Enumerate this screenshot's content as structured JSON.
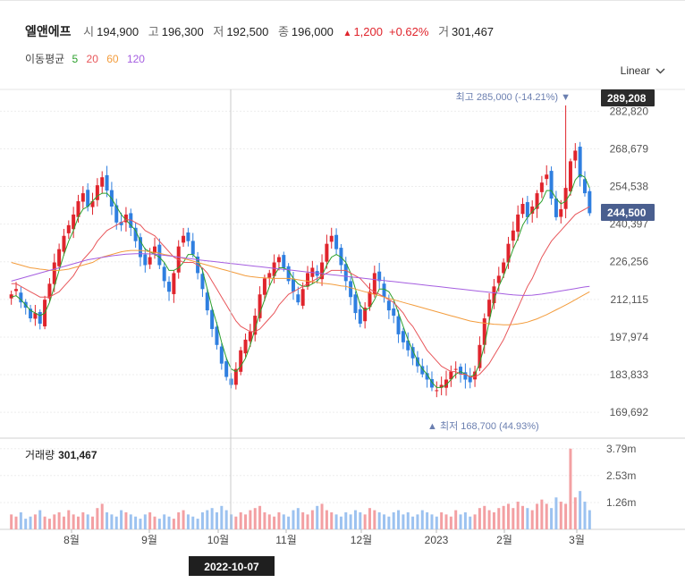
{
  "stock": {
    "name": "엘앤에프",
    "open_label": "시",
    "open": "194,900",
    "high_label": "고",
    "high": "196,300",
    "low_label": "저",
    "low": "192,500",
    "close_label": "종",
    "close": "196,000",
    "change": "1,200",
    "change_pct": "+0.62%",
    "volume_label": "거",
    "volume": "301,467"
  },
  "moving_average": {
    "label": "이동평균",
    "periods": [
      {
        "value": "5",
        "color": "#2ca02c"
      },
      {
        "value": "20",
        "color": "#e8565a"
      },
      {
        "value": "60",
        "color": "#f39c3c"
      },
      {
        "value": "120",
        "color": "#a55ee0"
      }
    ]
  },
  "scale_mode": "Linear",
  "chart_data": {
    "type": "candlestick",
    "title": "엘앤에프",
    "price_axis": {
      "ticks": [
        "282,820",
        "268,679",
        "254,538",
        "240,397",
        "226,256",
        "212,115",
        "197,974",
        "183,833",
        "169,692"
      ],
      "tick_values": [
        282820,
        268679,
        254538,
        240397,
        226256,
        212115,
        197974,
        183833,
        169692
      ],
      "range": [
        160000,
        291000
      ],
      "top_marker": "289,208",
      "current_marker": "244,500"
    },
    "x_axis": {
      "labels": [
        "8월",
        "9월",
        "10월",
        "11월",
        "12월",
        "2023",
        "2월",
        "3월"
      ]
    },
    "annotations": {
      "high": "최고 285,000 (-14.21%)",
      "low": "최저 168,700 (44.93%)"
    },
    "crosshair_date": "2022-10-07",
    "close_series": [
      214000,
      216000,
      211000,
      209000,
      205000,
      207000,
      203000,
      212000,
      218000,
      226000,
      231000,
      236000,
      240000,
      244000,
      249000,
      252000,
      247000,
      249000,
      255000,
      258000,
      253000,
      247000,
      241000,
      240000,
      244000,
      239000,
      234000,
      228000,
      225000,
      228000,
      232000,
      225000,
      219000,
      215000,
      222000,
      232000,
      236000,
      234000,
      229000,
      222000,
      216000,
      208000,
      201000,
      195000,
      188000,
      183000,
      180000,
      186000,
      193000,
      197000,
      200000,
      206000,
      214000,
      220000,
      222000,
      226000,
      228000,
      224000,
      219000,
      215000,
      211000,
      216000,
      222000,
      224000,
      221000,
      226000,
      233000,
      236000,
      231000,
      225000,
      219000,
      213000,
      207000,
      203000,
      209000,
      215000,
      222000,
      219000,
      213000,
      208000,
      206000,
      199000,
      196000,
      193000,
      190000,
      187000,
      184000,
      182000,
      179000,
      178000,
      180000,
      182000,
      185000,
      186000,
      184000,
      182000,
      181000,
      185000,
      195000,
      205000,
      212000,
      217000,
      221000,
      226000,
      233000,
      238000,
      244000,
      248000,
      243000,
      247000,
      252000,
      256000,
      259000,
      250000,
      243000,
      246000,
      254000,
      264000,
      268000,
      258000,
      252000,
      244500
    ],
    "ma_series": {
      "ma5": [
        213000,
        213500,
        212000,
        210000,
        208000,
        207000,
        206000,
        207000,
        211000,
        217000,
        223000,
        229000,
        234000,
        238000,
        243000,
        246000,
        247000,
        249000,
        251000,
        252000,
        252000,
        250000,
        247000,
        244000,
        242000,
        240000,
        238000,
        234000,
        231000,
        230000,
        229000,
        228000,
        226000,
        223000,
        223000,
        224000,
        226000,
        229000,
        229000,
        227000,
        223000,
        216000,
        209000,
        203000,
        196000,
        190000,
        186000,
        185000,
        187000,
        190000,
        195000,
        201000,
        207000,
        212000,
        217000,
        221000,
        224000,
        224000,
        223000,
        220000,
        218000,
        217000,
        217000,
        218000,
        219000,
        221000,
        225000,
        228000,
        229000,
        228000,
        226000,
        222000,
        216000,
        210000,
        208000,
        209000,
        212000,
        216000,
        216000,
        215000,
        212000,
        207000,
        202000,
        197000,
        193000,
        189000,
        186000,
        184000,
        181000,
        179000,
        179000,
        180000,
        182000,
        184000,
        185000,
        184000,
        183000,
        184000,
        188000,
        195000,
        204000,
        212000,
        217000,
        221000,
        226000,
        231000,
        235000,
        240000,
        243000,
        245000,
        247000,
        249000,
        253000,
        253000,
        250000,
        248000,
        249000,
        252000,
        257000,
        259000,
        258000,
        254000
      ],
      "ma20": [
        218000,
        218000,
        217000,
        216000,
        215000,
        214000,
        213000,
        213000,
        213000,
        214000,
        215000,
        217000,
        219000,
        221000,
        224000,
        227000,
        229000,
        231000,
        234000,
        236000,
        238000,
        239000,
        240000,
        241000,
        242000,
        242000,
        241000,
        240000,
        238000,
        237000,
        236000,
        234000,
        232000,
        230000,
        228000,
        227000,
        226000,
        226000,
        226000,
        225000,
        224000,
        222000,
        219000,
        216000,
        213000,
        210000,
        207000,
        204000,
        202000,
        201000,
        200000,
        200000,
        201000,
        203000,
        205000,
        207000,
        210000,
        212000,
        214000,
        215000,
        216000,
        217000,
        218000,
        219000,
        220000,
        221000,
        222000,
        223000,
        223000,
        223000,
        223000,
        222000,
        221000,
        220000,
        218000,
        216000,
        215000,
        214000,
        213000,
        212000,
        211000,
        209000,
        207000,
        204000,
        202000,
        199000,
        196000,
        193000,
        191000,
        189000,
        187000,
        186000,
        185000,
        185000,
        184000,
        184000,
        183000,
        183000,
        184000,
        186000,
        188000,
        191000,
        194000,
        197000,
        201000,
        205000,
        209000,
        213000,
        217000,
        220000,
        224000,
        228000,
        231000,
        234000,
        236000,
        238000,
        240000,
        242000,
        244000,
        245000,
        246000,
        247000
      ],
      "ma60": [
        226000,
        225500,
        225000,
        224500,
        224000,
        223800,
        223500,
        223300,
        223000,
        223000,
        223000,
        223200,
        223500,
        224000,
        224500,
        225000,
        225500,
        226000,
        227000,
        228000,
        228500,
        229000,
        229500,
        230000,
        230300,
        230500,
        230500,
        230500,
        230300,
        230000,
        229800,
        229500,
        229000,
        228700,
        228300,
        228000,
        227500,
        227000,
        226500,
        226000,
        225500,
        225000,
        224500,
        224000,
        223500,
        223000,
        222500,
        222000,
        221500,
        221000,
        220700,
        220500,
        220300,
        220200,
        220100,
        220000,
        220000,
        220000,
        220000,
        219800,
        219500,
        219200,
        219000,
        218800,
        218500,
        218200,
        218000,
        217800,
        217500,
        217200,
        217000,
        216500,
        216000,
        215500,
        215000,
        214500,
        214000,
        213500,
        213000,
        212500,
        212000,
        211500,
        211000,
        210500,
        210000,
        209500,
        209000,
        208500,
        208000,
        207500,
        207000,
        206500,
        206000,
        205500,
        205000,
        204500,
        204000,
        203700,
        203400,
        203200,
        203000,
        202800,
        202700,
        202600,
        202600,
        202700,
        202900,
        203200,
        203600,
        204200,
        204800,
        205600,
        206400,
        207300,
        208200,
        209100,
        210000,
        211000,
        212000,
        213000,
        214000,
        215000
      ],
      "ma120": [
        219000,
        219500,
        220000,
        220500,
        221000,
        221500,
        222000,
        222500,
        223000,
        223500,
        224000,
        224500,
        225000,
        225500,
        226000,
        226500,
        227000,
        227300,
        227600,
        227900,
        228200,
        228500,
        228700,
        228900,
        229100,
        229200,
        229300,
        229300,
        229300,
        229200,
        229100,
        228900,
        228700,
        228500,
        228300,
        228000,
        227800,
        227500,
        227300,
        227000,
        226800,
        226600,
        226400,
        226200,
        226000,
        225800,
        225600,
        225400,
        225200,
        225000,
        224800,
        224600,
        224400,
        224200,
        224000,
        223800,
        223600,
        223400,
        223200,
        223000,
        222800,
        222600,
        222400,
        222200,
        222000,
        221800,
        221600,
        221400,
        221200,
        221000,
        220800,
        220600,
        220400,
        220200,
        220000,
        219800,
        219600,
        219400,
        219200,
        219000,
        218800,
        218600,
        218400,
        218200,
        218000,
        217800,
        217600,
        217400,
        217200,
        217000,
        216800,
        216600,
        216400,
        216200,
        216000,
        215800,
        215600,
        215400,
        215200,
        215000,
        214800,
        214600,
        214400,
        214200,
        214000,
        213800,
        213700,
        213600,
        213600,
        213700,
        213900,
        214100,
        214400,
        214700,
        215000,
        215300,
        215600,
        215900,
        216200,
        216500,
        216800,
        217000
      ]
    },
    "volume_panel": {
      "title": "거래량",
      "value": "301,467",
      "ticks": [
        "3.79m",
        "2.53m",
        "1.26m"
      ],
      "tick_values": [
        3.79,
        2.53,
        1.26
      ],
      "range": [
        0,
        4.2
      ],
      "unit": "m",
      "values": [
        0.7,
        0.6,
        0.8,
        0.5,
        0.6,
        0.7,
        0.9,
        0.6,
        0.5,
        0.7,
        0.8,
        0.6,
        0.9,
        0.7,
        0.6,
        0.8,
        0.7,
        0.6,
        1.0,
        1.2,
        0.8,
        0.7,
        0.6,
        0.9,
        0.8,
        0.7,
        0.6,
        0.5,
        0.7,
        0.8,
        0.6,
        0.5,
        0.7,
        0.6,
        0.5,
        0.8,
        0.9,
        0.7,
        0.6,
        0.5,
        0.8,
        0.9,
        1.0,
        0.8,
        1.1,
        0.9,
        0.7,
        0.6,
        0.8,
        0.7,
        0.9,
        1.0,
        1.1,
        0.8,
        0.7,
        0.6,
        0.8,
        0.7,
        0.6,
        0.9,
        1.0,
        0.8,
        0.7,
        0.9,
        1.1,
        1.2,
        0.9,
        0.8,
        0.7,
        0.6,
        0.8,
        0.7,
        0.9,
        0.8,
        0.7,
        1.0,
        0.9,
        0.8,
        0.7,
        0.6,
        0.8,
        0.9,
        0.7,
        0.8,
        0.6,
        0.7,
        0.9,
        0.8,
        0.7,
        0.6,
        0.8,
        0.7,
        0.6,
        0.9,
        0.7,
        0.8,
        0.6,
        0.7,
        1.0,
        1.1,
        0.9,
        0.8,
        1.0,
        1.1,
        1.2,
        1.0,
        1.3,
        1.1,
        1.0,
        0.9,
        1.2,
        1.4,
        1.2,
        1.0,
        1.5,
        1.3,
        1.2,
        3.79,
        1.5,
        1.8,
        1.3,
        0.9
      ]
    }
  }
}
